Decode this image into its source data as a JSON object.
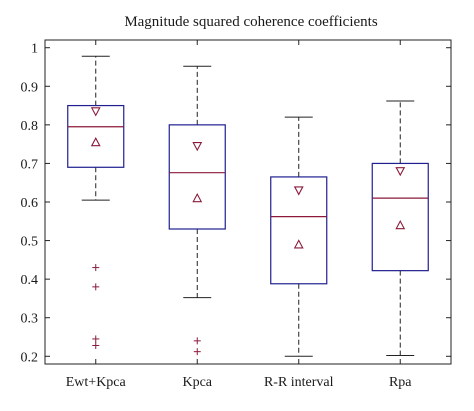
{
  "chart_data": {
    "type": "box",
    "title": "Magnitude squared coherence coefficients",
    "xlabel": "",
    "ylabel": "",
    "ylim": [
      0.18,
      1.02
    ],
    "yticks": [
      "0.2",
      "0.3",
      "0.4",
      "0.5",
      "0.6",
      "0.7",
      "0.8",
      "0.9",
      "1"
    ],
    "grid": false,
    "colors": {
      "box": "#1f1f8f",
      "median": "#8b1a3a",
      "whisker": "#222222",
      "marker": "#8b1a3a",
      "axis": "#222222"
    },
    "series": [
      {
        "category": "Ewt+Kpca",
        "whisker_low": 0.605,
        "q1": 0.69,
        "median": 0.795,
        "q3": 0.85,
        "whisker_high": 0.978,
        "mean_up": 0.755,
        "mean_down": 0.835,
        "outliers": [
          0.43,
          0.38,
          0.245,
          0.228
        ]
      },
      {
        "category": "Kpca",
        "whisker_low": 0.352,
        "q1": 0.53,
        "median": 0.676,
        "q3": 0.8,
        "whisker_high": 0.952,
        "mean_up": 0.61,
        "mean_down": 0.745,
        "outliers": [
          0.24,
          0.212
        ]
      },
      {
        "category": "R-R interval",
        "whisker_low": 0.2,
        "q1": 0.388,
        "median": 0.562,
        "q3": 0.665,
        "whisker_high": 0.82,
        "mean_up": 0.49,
        "mean_down": 0.63,
        "outliers": []
      },
      {
        "category": "Rpa",
        "whisker_low": 0.202,
        "q1": 0.422,
        "median": 0.61,
        "q3": 0.7,
        "whisker_high": 0.862,
        "mean_up": 0.54,
        "mean_down": 0.68,
        "outliers": []
      }
    ]
  }
}
